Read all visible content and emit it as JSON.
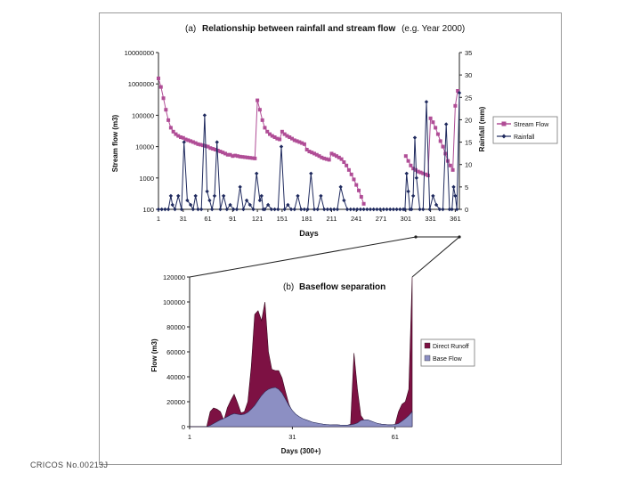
{
  "footer": {
    "text": "CRICOS No.00213J"
  },
  "chart_data": [
    {
      "type": "line",
      "title": "(a) Relationship between rainfall and stream flow (e.g. Year 2000)",
      "title_prefix": "(a)",
      "title_main": "Relationship between rainfall and stream flow",
      "title_suffix": "(e.g. Year 2000)",
      "xlabel": "Days",
      "ylabel_left": "Stream flow (m3)",
      "ylabel_right": "Rainfall (mm)",
      "y_scale_left": "log",
      "ylim_left": [
        100,
        10000000
      ],
      "ylim_right": [
        0,
        35
      ],
      "xlim": [
        1,
        366
      ],
      "xticks": [
        1,
        31,
        61,
        91,
        121,
        151,
        181,
        211,
        241,
        271,
        301,
        331,
        361
      ],
      "yticks_left": [
        100,
        1000,
        10000,
        100000,
        1000000,
        10000000
      ],
      "yticks_left_labels": [
        "100",
        "1000",
        "10000",
        "100000",
        "1000000",
        "10000000"
      ],
      "yticks_right": [
        0,
        5,
        10,
        15,
        20,
        25,
        30,
        35
      ],
      "legend_position": "right",
      "series": [
        {
          "name": "Stream Flow",
          "axis": "left",
          "color": "#b04d96",
          "marker": "square",
          "x": [
            1,
            4,
            7,
            10,
            13,
            16,
            19,
            22,
            25,
            28,
            31,
            34,
            37,
            40,
            43,
            46,
            49,
            52,
            55,
            58,
            61,
            64,
            67,
            70,
            73,
            76,
            79,
            82,
            85,
            88,
            91,
            94,
            97,
            100,
            103,
            106,
            109,
            112,
            115,
            118,
            121,
            124,
            127,
            130,
            133,
            136,
            139,
            142,
            145,
            148,
            151,
            154,
            157,
            160,
            163,
            166,
            169,
            172,
            175,
            178,
            181,
            184,
            187,
            190,
            193,
            196,
            199,
            202,
            205,
            208,
            211,
            214,
            217,
            220,
            223,
            226,
            229,
            232,
            235,
            238,
            241,
            244,
            247,
            250,
            301,
            304,
            307,
            310,
            313,
            316,
            319,
            322,
            325,
            328,
            331,
            334,
            337,
            340,
            343,
            346,
            349,
            352,
            355,
            358,
            361,
            364
          ],
          "y": [
            1500000,
            800000,
            350000,
            150000,
            70000,
            40000,
            30000,
            25000,
            22000,
            20000,
            19000,
            17000,
            16000,
            15000,
            14000,
            13000,
            12000,
            11500,
            11000,
            10500,
            10000,
            9000,
            8500,
            8000,
            7500,
            7000,
            6500,
            6000,
            5500,
            5500,
            5000,
            5200,
            5000,
            4800,
            4700,
            4600,
            4500,
            4400,
            4300,
            4200,
            300000,
            150000,
            70000,
            40000,
            30000,
            25000,
            22000,
            20000,
            18000,
            17000,
            30000,
            25000,
            22000,
            20000,
            18000,
            16000,
            15000,
            14000,
            13000,
            12000,
            8000,
            7000,
            6500,
            6000,
            5500,
            5000,
            4500,
            4200,
            4000,
            3800,
            6000,
            5500,
            5000,
            4500,
            4000,
            3200,
            2500,
            1800,
            1300,
            900,
            600,
            400,
            250,
            150,
            5000,
            3500,
            2500,
            2000,
            1800,
            1600,
            1500,
            1400,
            1300,
            1200,
            80000,
            60000,
            40000,
            25000,
            15000,
            10000,
            6000,
            3500,
            2500,
            1800,
            200000,
            600000
          ]
        },
        {
          "name": "Rainfall",
          "axis": "right",
          "color": "#1f2a5e",
          "marker": "diamond",
          "x": [
            1,
            5,
            9,
            13,
            16,
            18,
            21,
            25,
            29,
            32,
            36,
            40,
            43,
            46,
            49,
            53,
            57,
            60,
            63,
            66,
            69,
            72,
            76,
            80,
            84,
            88,
            92,
            96,
            100,
            104,
            108,
            112,
            116,
            120,
            124,
            126,
            128,
            130,
            134,
            138,
            142,
            146,
            150,
            154,
            158,
            162,
            166,
            170,
            174,
            178,
            182,
            186,
            190,
            194,
            198,
            202,
            206,
            210,
            214,
            218,
            222,
            226,
            230,
            234,
            238,
            242,
            246,
            250,
            254,
            258,
            262,
            266,
            270,
            274,
            278,
            282,
            286,
            290,
            294,
            298,
            300,
            302,
            304,
            306,
            308,
            310,
            312,
            314,
            318,
            322,
            326,
            330,
            334,
            338,
            342,
            346,
            350,
            354,
            357,
            359,
            361,
            363,
            366
          ],
          "y": [
            0,
            0,
            0,
            0,
            3,
            1,
            0,
            3,
            0,
            15,
            2,
            1,
            0,
            3,
            0,
            0,
            21,
            4,
            2,
            0,
            3,
            15,
            0,
            3,
            0,
            1,
            0,
            0,
            5,
            0,
            2,
            1,
            0,
            8,
            2,
            3,
            0,
            0,
            1,
            0,
            0,
            0,
            14,
            0,
            1,
            0,
            0,
            3,
            0,
            0,
            0,
            8,
            0,
            0,
            3,
            0,
            0,
            0,
            0,
            0,
            5,
            2,
            0,
            0,
            0,
            0,
            0,
            0,
            0,
            0,
            0,
            0,
            0,
            0,
            0,
            0,
            0,
            0,
            0,
            0,
            0,
            8,
            4,
            0,
            0,
            3,
            16,
            7,
            0,
            0,
            24,
            0,
            3,
            1,
            0,
            0,
            19,
            0,
            0,
            5,
            3,
            0,
            26
          ]
        }
      ]
    },
    {
      "type": "area",
      "title": "(b) Baseflow separation",
      "title_prefix": "(b)",
      "title_main": "Baseflow separation",
      "xlabel": "Days (300+)",
      "ylabel": "Flow (m3)",
      "ylim": [
        0,
        120000
      ],
      "xlim": [
        1,
        66
      ],
      "xticks": [
        1,
        31,
        61
      ],
      "yticks": [
        0,
        20000,
        40000,
        60000,
        80000,
        100000,
        120000
      ],
      "legend_position": "right",
      "x": [
        1,
        2,
        3,
        4,
        5,
        6,
        7,
        8,
        9,
        10,
        11,
        12,
        13,
        14,
        15,
        16,
        17,
        18,
        19,
        20,
        21,
        22,
        23,
        24,
        25,
        26,
        27,
        28,
        29,
        30,
        31,
        32,
        33,
        34,
        35,
        36,
        37,
        38,
        39,
        40,
        41,
        42,
        43,
        44,
        45,
        46,
        47,
        48,
        49,
        50,
        51,
        52,
        53,
        54,
        55,
        56,
        57,
        58,
        59,
        60,
        61,
        62,
        63,
        64,
        65,
        66
      ],
      "series": [
        {
          "name": "Direct Runoff",
          "color": "#7d1143",
          "values": [
            0,
            0,
            0,
            0,
            0,
            0,
            12000,
            15000,
            14000,
            12000,
            5000,
            15000,
            21000,
            26000,
            19000,
            11000,
            12000,
            20000,
            48000,
            90000,
            93000,
            85000,
            100000,
            60000,
            46000,
            45000,
            45000,
            39000,
            28000,
            18000,
            12000,
            9000,
            7000,
            5000,
            3500,
            2500,
            2000,
            1800,
            1500,
            1200,
            1000,
            1200,
            1500,
            1500,
            1200,
            1000,
            1000,
            2000,
            59000,
            30000,
            9000,
            5000,
            4000,
            3500,
            3000,
            2500,
            2000,
            1800,
            1500,
            1500,
            1800,
            12000,
            18000,
            20000,
            30000,
            120000
          ]
        },
        {
          "name": "Base Flow",
          "color": "#8c8fc3",
          "values": [
            0,
            0,
            0,
            0,
            0,
            0,
            1000,
            2500,
            4000,
            5500,
            6500,
            8000,
            9500,
            10500,
            10000,
            9500,
            10000,
            11500,
            14000,
            17000,
            21000,
            25000,
            28000,
            30000,
            31000,
            31500,
            30000,
            27000,
            22000,
            17000,
            13000,
            10000,
            8000,
            6500,
            5500,
            4500,
            3500,
            3000,
            2500,
            2000,
            1700,
            1500,
            1500,
            1500,
            1300,
            1200,
            1200,
            1500,
            2000,
            3000,
            5000,
            5500,
            5500,
            4500,
            3500,
            2500,
            2000,
            1800,
            1500,
            1500,
            1800,
            2500,
            4500,
            6500,
            9000,
            12000
          ]
        }
      ]
    }
  ]
}
